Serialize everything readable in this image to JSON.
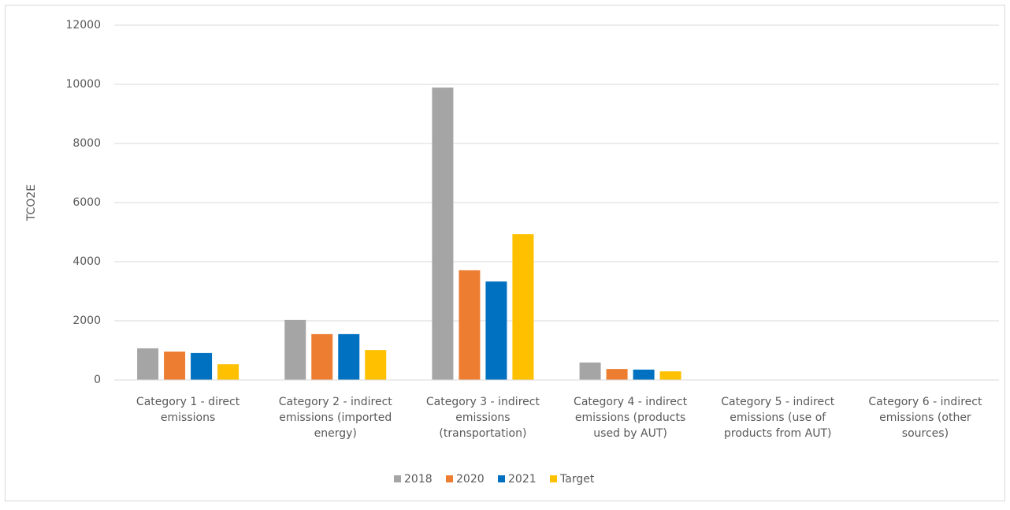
{
  "chart_data": {
    "type": "bar",
    "y_label": "TCO2E",
    "categories": [
      "Category 1 - direct emissions",
      "Category 2 - indirect emissions (imported energy)",
      "Category 3 - indirect emissions (transportation)",
      "Category 4 - indirect emissions (products used by AUT)",
      "Category 5 - indirect emissions (use of products from AUT)",
      "Category 6 - indirect emissions (other sources)"
    ],
    "series": [
      {
        "name": "2018",
        "color": "#a5a5a5",
        "values": [
          1070,
          2030,
          9890,
          590,
          0,
          0
        ]
      },
      {
        "name": "2020",
        "color": "#ed7d31",
        "values": [
          960,
          1550,
          3710,
          370,
          0,
          0
        ]
      },
      {
        "name": "2021",
        "color": "#0070c0",
        "values": [
          910,
          1550,
          3330,
          350,
          0,
          0
        ]
      },
      {
        "name": "Target",
        "color": "#ffc000",
        "values": [
          530,
          1010,
          4930,
          290,
          0,
          0
        ]
      }
    ],
    "ylim": [
      0,
      12000
    ],
    "yticks": [
      0,
      2000,
      4000,
      6000,
      8000,
      10000,
      12000
    ],
    "grid": true,
    "legend": "bottom"
  }
}
